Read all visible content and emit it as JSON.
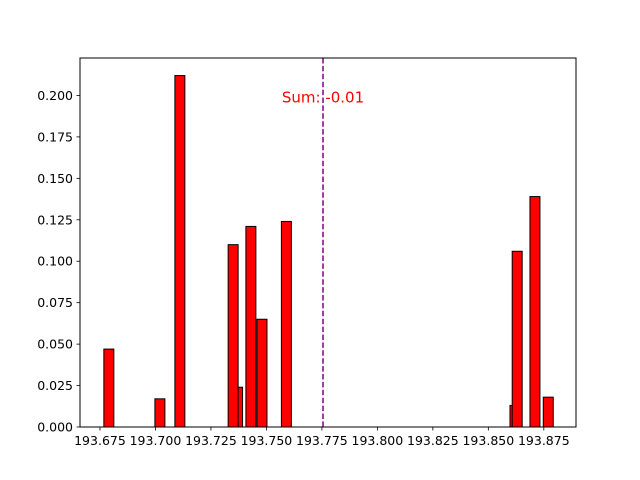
{
  "chart_data": {
    "type": "bar",
    "title": "",
    "xlabel": "",
    "ylabel": "",
    "xlim": [
      193.666,
      193.8895
    ],
    "ylim": [
      0,
      0.2226
    ],
    "bar_width": 0.0045,
    "bar_color": "#ff0000",
    "edge_color": "#000000",
    "grid": false,
    "bars": [
      {
        "x": 193.679,
        "y": 0.047
      },
      {
        "x": 193.702,
        "y": 0.017
      },
      {
        "x": 193.711,
        "y": 0.212
      },
      {
        "x": 193.737,
        "y": 0.024
      },
      {
        "x": 193.735,
        "y": 0.11
      },
      {
        "x": 193.743,
        "y": 0.121
      },
      {
        "x": 193.748,
        "y": 0.065
      },
      {
        "x": 193.759,
        "y": 0.124
      },
      {
        "x": 193.862,
        "y": 0.013
      },
      {
        "x": 193.863,
        "y": 0.106
      },
      {
        "x": 193.871,
        "y": 0.139
      },
      {
        "x": 193.877,
        "y": 0.018
      }
    ],
    "xticks": [
      193.675,
      193.7,
      193.725,
      193.75,
      193.775,
      193.8,
      193.825,
      193.85,
      193.875
    ],
    "xtick_labels": [
      "193.675",
      "193.700",
      "193.725",
      "193.750",
      "193.775",
      "193.800",
      "193.825",
      "193.850",
      "193.875"
    ],
    "yticks": [
      0,
      0.025,
      0.05,
      0.075,
      0.1,
      0.125,
      0.15,
      0.175,
      0.2
    ],
    "ytick_labels": [
      "0.000",
      "0.025",
      "0.050",
      "0.075",
      "0.100",
      "0.125",
      "0.150",
      "0.175",
      "0.200"
    ],
    "reference_line": {
      "x": 193.7755,
      "color": "#800080",
      "style": "dashed"
    },
    "annotation": {
      "text": "Sum: -0.01",
      "x": 193.7755,
      "y": 0.1995,
      "color": "#ff0000"
    }
  }
}
